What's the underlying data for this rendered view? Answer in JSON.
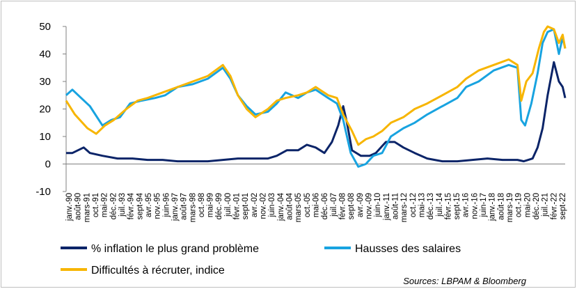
{
  "chart_data": {
    "type": "line",
    "title": "",
    "xlabel": "",
    "ylabel": "",
    "ylim": [
      -10,
      50
    ],
    "yticks": [
      -10,
      0,
      10,
      20,
      30,
      40,
      50
    ],
    "grid": false,
    "legend_position": "bottom",
    "source": "Sources: LBPAM & Bloomberg",
    "x_start": "1990-01",
    "x_end": "2023-03",
    "x_tick_labels": [
      "janv.-90",
      "août-90",
      "mars-91",
      "oct.-91",
      "mai-92",
      "déc.-92",
      "juil.-93",
      "févr.-94",
      "sept-94",
      "avr.-95",
      "nov.-95",
      "juin-96",
      "janv.-97",
      "août-97",
      "mars-98",
      "oct.-98",
      "mai-99",
      "déc.-99",
      "juil.-00",
      "févr.-01",
      "sept-01",
      "avr.-02",
      "nov.-02",
      "juin-03",
      "janv.-04",
      "août-04",
      "mars-05",
      "oct.-05",
      "mai-06",
      "déc.-06",
      "juil.-07",
      "févr.-08",
      "sept-08",
      "avr.-09",
      "nov.-09",
      "juin-10",
      "janv.-11",
      "août-11",
      "mars-12",
      "oct.-12",
      "mai-13",
      "déc.-13",
      "juil.-14",
      "févr.-15",
      "sept-15",
      "avr.-16",
      "nov.-16",
      "juin-17",
      "janv.-18",
      "août-18",
      "mars-19",
      "oct.-19",
      "mai-20",
      "déc.-20",
      "juil.-21",
      "févr.-22",
      "sept-22"
    ],
    "series": [
      {
        "name": "% inflation le plus grand problème",
        "color": "#0b2468",
        "points": [
          [
            "1990-01",
            4
          ],
          [
            "1990-06",
            4
          ],
          [
            "1991-03",
            6
          ],
          [
            "1991-08",
            4
          ],
          [
            "1992-06",
            3
          ],
          [
            "1993-06",
            2
          ],
          [
            "1994-06",
            2
          ],
          [
            "1995-06",
            1.5
          ],
          [
            "1996-06",
            1.5
          ],
          [
            "1997-06",
            1
          ],
          [
            "1998-06",
            1
          ],
          [
            "1999-06",
            1
          ],
          [
            "2000-06",
            1.5
          ],
          [
            "2001-06",
            2
          ],
          [
            "2002-06",
            2
          ],
          [
            "2003-06",
            2
          ],
          [
            "2004-01",
            3
          ],
          [
            "2004-09",
            5
          ],
          [
            "2005-06",
            5
          ],
          [
            "2006-01",
            7
          ],
          [
            "2006-08",
            6
          ],
          [
            "2007-03",
            4
          ],
          [
            "2007-09",
            8
          ],
          [
            "2008-02",
            14
          ],
          [
            "2008-06",
            21
          ],
          [
            "2008-09",
            15
          ],
          [
            "2009-01",
            5
          ],
          [
            "2009-08",
            3
          ],
          [
            "2010-03",
            3
          ],
          [
            "2010-08",
            4
          ],
          [
            "2011-04",
            8
          ],
          [
            "2011-11",
            8
          ],
          [
            "2012-06",
            6
          ],
          [
            "2013-03",
            4
          ],
          [
            "2014-01",
            2
          ],
          [
            "2015-01",
            1
          ],
          [
            "2016-01",
            1
          ],
          [
            "2017-01",
            1.5
          ],
          [
            "2018-01",
            2
          ],
          [
            "2019-01",
            1.5
          ],
          [
            "2020-01",
            1.5
          ],
          [
            "2020-06",
            1
          ],
          [
            "2021-01",
            2
          ],
          [
            "2021-05",
            6
          ],
          [
            "2021-09",
            13
          ],
          [
            "2022-01",
            25
          ],
          [
            "2022-06",
            37
          ],
          [
            "2022-10",
            30
          ],
          [
            "2023-01",
            28
          ],
          [
            "2023-03",
            24
          ]
        ]
      },
      {
        "name": "Hausses des salaires",
        "color": "#18a3e0",
        "points": [
          [
            "1990-01",
            25
          ],
          [
            "1990-06",
            27
          ],
          [
            "1991-01",
            24
          ],
          [
            "1991-08",
            21
          ],
          [
            "1992-06",
            14
          ],
          [
            "1993-01",
            16
          ],
          [
            "1993-08",
            17
          ],
          [
            "1994-04",
            22
          ],
          [
            "1995-01",
            23
          ],
          [
            "1995-12",
            24
          ],
          [
            "1996-08",
            25
          ],
          [
            "1997-06",
            28
          ],
          [
            "1998-06",
            29
          ],
          [
            "1999-06",
            31
          ],
          [
            "2000-06",
            35
          ],
          [
            "2000-12",
            31
          ],
          [
            "2001-06",
            25
          ],
          [
            "2002-01",
            21
          ],
          [
            "2002-08",
            18
          ],
          [
            "2003-06",
            19
          ],
          [
            "2004-01",
            22
          ],
          [
            "2004-08",
            26
          ],
          [
            "2005-06",
            24
          ],
          [
            "2006-01",
            26
          ],
          [
            "2006-08",
            27
          ],
          [
            "2007-06",
            24
          ],
          [
            "2008-01",
            22
          ],
          [
            "2008-06",
            16
          ],
          [
            "2008-12",
            4
          ],
          [
            "2009-06",
            -1
          ],
          [
            "2009-12",
            0
          ],
          [
            "2010-06",
            3
          ],
          [
            "2011-01",
            4
          ],
          [
            "2011-08",
            10
          ],
          [
            "2012-06",
            13
          ],
          [
            "2013-03",
            15
          ],
          [
            "2014-01",
            18
          ],
          [
            "2015-01",
            21
          ],
          [
            "2016-01",
            24
          ],
          [
            "2016-08",
            28
          ],
          [
            "2017-06",
            30
          ],
          [
            "2018-06",
            34
          ],
          [
            "2019-06",
            36
          ],
          [
            "2020-01",
            35
          ],
          [
            "2020-04",
            16
          ],
          [
            "2020-07",
            14
          ],
          [
            "2020-12",
            22
          ],
          [
            "2021-05",
            33
          ],
          [
            "2021-09",
            44
          ],
          [
            "2022-01",
            48
          ],
          [
            "2022-06",
            49
          ],
          [
            "2022-10",
            40
          ],
          [
            "2023-01",
            46
          ],
          [
            "2023-03",
            42
          ]
        ]
      },
      {
        "name": "Difficultés à récruter, indice",
        "color": "#f7b500",
        "points": [
          [
            "1990-01",
            23
          ],
          [
            "1990-08",
            18
          ],
          [
            "1991-06",
            13
          ],
          [
            "1992-01",
            11
          ],
          [
            "1992-08",
            14
          ],
          [
            "1993-03",
            16
          ],
          [
            "1994-01",
            20
          ],
          [
            "1994-10",
            23
          ],
          [
            "1995-06",
            24
          ],
          [
            "1996-06",
            26
          ],
          [
            "1997-06",
            28
          ],
          [
            "1998-06",
            30
          ],
          [
            "1999-06",
            32
          ],
          [
            "2000-06",
            36
          ],
          [
            "2000-12",
            32
          ],
          [
            "2001-06",
            25
          ],
          [
            "2002-01",
            20
          ],
          [
            "2002-08",
            17
          ],
          [
            "2003-06",
            20
          ],
          [
            "2004-01",
            23
          ],
          [
            "2004-08",
            24
          ],
          [
            "2005-06",
            25
          ],
          [
            "2006-01",
            26
          ],
          [
            "2006-08",
            28
          ],
          [
            "2007-06",
            25
          ],
          [
            "2008-01",
            24
          ],
          [
            "2008-06",
            18
          ],
          [
            "2009-01",
            12
          ],
          [
            "2009-06",
            7
          ],
          [
            "2009-12",
            9
          ],
          [
            "2010-06",
            10
          ],
          [
            "2011-01",
            12
          ],
          [
            "2011-08",
            15
          ],
          [
            "2012-06",
            17
          ],
          [
            "2013-03",
            20
          ],
          [
            "2014-01",
            22
          ],
          [
            "2015-01",
            25
          ],
          [
            "2016-01",
            28
          ],
          [
            "2016-08",
            31
          ],
          [
            "2017-06",
            34
          ],
          [
            "2018-06",
            36
          ],
          [
            "2019-06",
            38
          ],
          [
            "2020-01",
            36
          ],
          [
            "2020-04",
            23
          ],
          [
            "2020-08",
            30
          ],
          [
            "2021-01",
            33
          ],
          [
            "2021-06",
            42
          ],
          [
            "2021-10",
            48
          ],
          [
            "2022-01",
            50
          ],
          [
            "2022-06",
            49
          ],
          [
            "2022-10",
            44
          ],
          [
            "2023-01",
            47
          ],
          [
            "2023-03",
            42
          ]
        ]
      }
    ]
  }
}
